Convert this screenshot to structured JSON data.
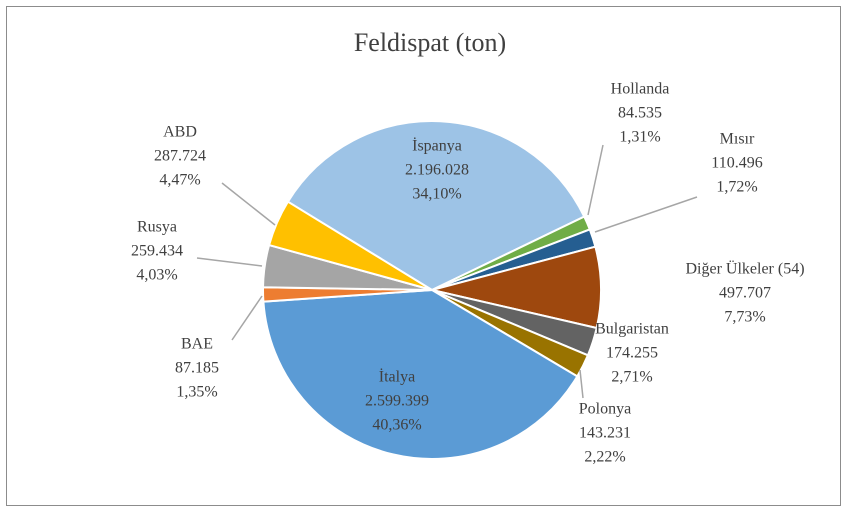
{
  "chart_data": {
    "type": "pie",
    "title": "Feldispat (ton)",
    "categories": [
      "İspanya",
      "Hollanda",
      "Mısır",
      "Diğer Ülkeler (54)",
      "Bulgaristan",
      "Polonya",
      "İtalya",
      "BAE",
      "Rusya",
      "ABD"
    ],
    "values": [
      2196028,
      84535,
      110496,
      497707,
      174255,
      143231,
      2599399,
      87185,
      259434,
      287724
    ],
    "value_labels": [
      "2.196.028",
      "84.535",
      "110.496",
      "497.707",
      "174.255",
      "143.231",
      "2.599.399",
      "87.185",
      "259.434",
      "287.724"
    ],
    "percentages": [
      34.1,
      1.31,
      1.72,
      7.73,
      2.71,
      2.22,
      40.36,
      1.35,
      4.03,
      4.47
    ],
    "percentage_labels": [
      "34,10%",
      "1,31%",
      "1,72%",
      "7,73%",
      "2,71%",
      "2,22%",
      "40,36%",
      "1,35%",
      "4,03%",
      "4,47%"
    ],
    "colors": [
      "#9dc3e6",
      "#70ad47",
      "#255e91",
      "#9e480e",
      "#636363",
      "#997300",
      "#5b9bd5",
      "#ed7d31",
      "#a5a5a5",
      "#ffc000"
    ]
  }
}
